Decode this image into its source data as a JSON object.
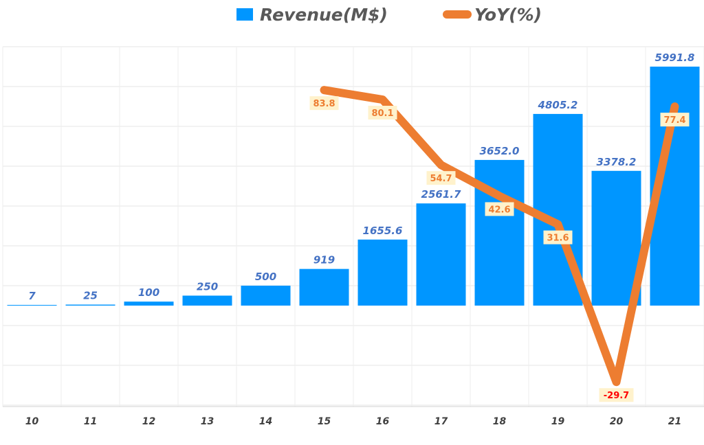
{
  "chart_data": {
    "type": "bar",
    "title": "",
    "categories": [
      "10",
      "11",
      "12",
      "13",
      "14",
      "15",
      "16",
      "17",
      "18",
      "19",
      "20",
      "21"
    ],
    "series": [
      {
        "name": "Revenue(M$)",
        "type": "bar",
        "axis": "primary",
        "color": "#0096FF",
        "values": [
          7,
          25,
          100,
          250,
          500,
          919,
          1655.6,
          2561.7,
          3652.0,
          4805.2,
          3378.2,
          5991.8
        ],
        "labels": [
          "7",
          "25",
          "100",
          "250",
          "500",
          "919",
          "1655.6",
          "2561.7",
          "3652.0",
          "4805.2",
          "3378.2",
          "5991.8"
        ]
      },
      {
        "name": "YoY(%)",
        "type": "line",
        "axis": "secondary",
        "color": "#ED7D31",
        "values": [
          null,
          null,
          null,
          null,
          null,
          83.8,
          80.1,
          54.7,
          42.6,
          31.6,
          -29.7,
          77.4
        ],
        "labels": [
          "",
          "",
          "",
          "",
          "",
          "83.8",
          "80.1",
          "54.7",
          "42.6",
          "31.6",
          "-29.7",
          "77.4"
        ]
      }
    ],
    "legend": "top",
    "grid": true,
    "colors": {
      "bar_label": "#4472C4",
      "yoy_label": "#ED7D31",
      "yoy_negative_label": "#FF0000",
      "yoy_label_bg": "#FFF2CC",
      "legend_text": "#595959"
    }
  }
}
